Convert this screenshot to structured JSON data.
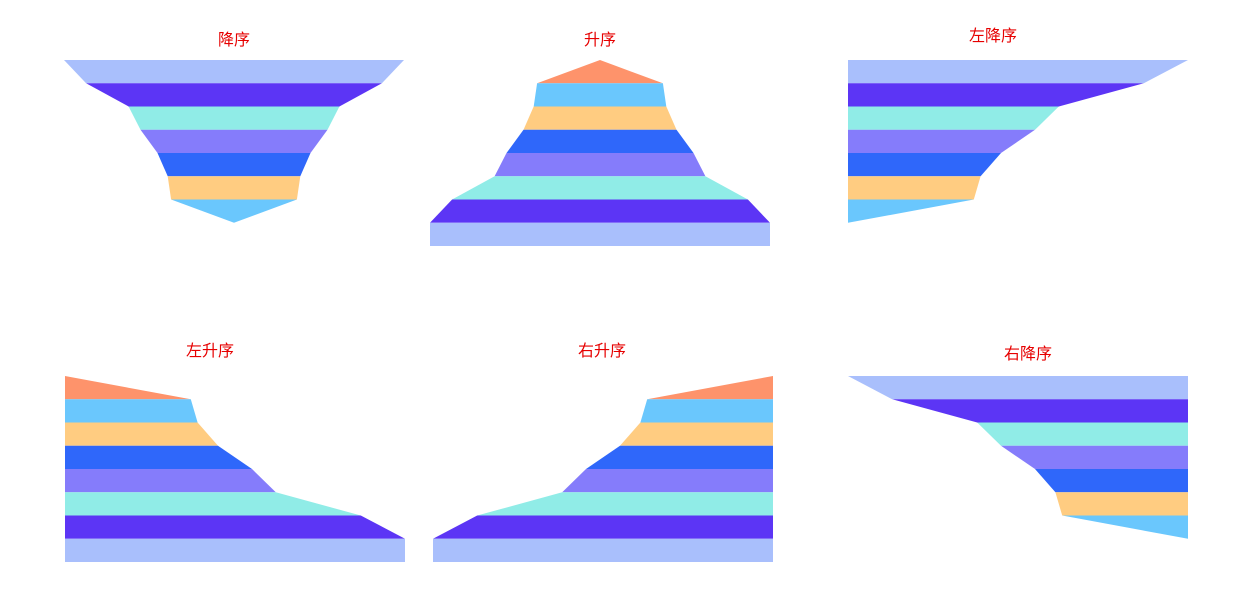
{
  "palette": [
    "#a9bffc",
    "#5c35f5",
    "#90ece7",
    "#857cfb",
    "#2f67fa",
    "#ffcc81",
    "#6ac7fd",
    "#fe936b"
  ],
  "chart_data": [
    {
      "type": "funnel",
      "title": "降序",
      "orientation": "center",
      "order": "descending",
      "values": [
        100,
        87,
        62,
        55,
        45,
        39,
        37,
        0
      ]
    },
    {
      "type": "funnel",
      "title": "升序",
      "orientation": "center",
      "order": "ascending",
      "values": [
        0,
        37,
        39,
        45,
        55,
        62,
        87,
        100
      ]
    },
    {
      "type": "funnel",
      "title": "左降序",
      "orientation": "left",
      "order": "descending",
      "values": [
        100,
        87,
        62,
        55,
        45,
        39,
        37,
        0
      ]
    },
    {
      "type": "funnel",
      "title": "左升序",
      "orientation": "left",
      "order": "ascending",
      "values": [
        0,
        37,
        39,
        45,
        55,
        62,
        87,
        100
      ]
    },
    {
      "type": "funnel",
      "title": "右升序",
      "orientation": "right",
      "order": "ascending",
      "values": [
        0,
        37,
        39,
        45,
        55,
        62,
        87,
        100
      ]
    },
    {
      "type": "funnel",
      "title": "右降序",
      "orientation": "right",
      "order": "descending",
      "values": [
        100,
        87,
        62,
        55,
        45,
        39,
        37,
        0
      ]
    }
  ]
}
